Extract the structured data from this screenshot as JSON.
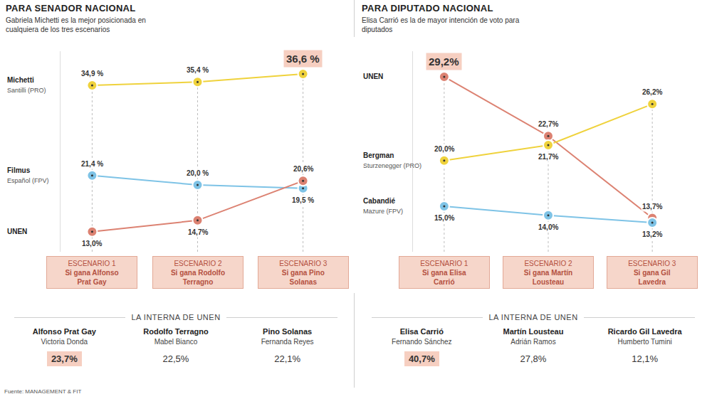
{
  "chart_data": [
    {
      "type": "line",
      "title": "PARA SENADOR NACIONAL",
      "subtitle": "Gabriela Michetti es la mejor posicionada en cualquiera de los tres escenarios",
      "categories": [
        "ESCENARIO 1",
        "ESCENARIO 2",
        "ESCENARIO 3"
      ],
      "scenario_labels": [
        "Si gana Alfonso Prat Gay",
        "Si gana Rodolfo Terragno",
        "Si gana Pino Solanas"
      ],
      "series": [
        {
          "name": "Michetti",
          "detail": "Santilli (PRO)",
          "color": "#efd23c",
          "values": [
            34.9,
            35.4,
            36.6
          ],
          "value_labels": [
            "34,9 %",
            "35,4 %",
            "36,6 %"
          ]
        },
        {
          "name": "Filmus",
          "detail": "Español (FPV)",
          "color": "#7ec3e6",
          "values": [
            21.4,
            20.0,
            19.5
          ],
          "value_labels": [
            "21,4 %",
            "20,0 %",
            "19,5 %"
          ]
        },
        {
          "name": "UNEN",
          "color": "#dc8272",
          "values": [
            13.0,
            14.7,
            20.6
          ],
          "value_labels": [
            "13,0%",
            "14,7%",
            "20,6%"
          ]
        }
      ],
      "ylim": [
        10,
        40
      ],
      "grid": false,
      "tick_labels": false,
      "data_labels": true,
      "marker": "circle",
      "internal": {
        "title": "LA INTERNA DE UNEN",
        "candidates": [
          {
            "name": "Alfonso Prat Gay",
            "running_mate": "Victoria Donda",
            "value": 23.7,
            "value_label": "23,7%"
          },
          {
            "name": "Rodolfo Terragno",
            "running_mate": "Mabel Bianco",
            "value": 22.5,
            "value_label": "22,5%"
          },
          {
            "name": "Pino Solanas",
            "running_mate": "Fernanda Reyes",
            "value": 22.1,
            "value_label": "22,1%"
          }
        ]
      }
    },
    {
      "type": "line",
      "title": "PARA DIPUTADO NACIONAL",
      "subtitle": "Elisa Carrió es la de mayor intención de voto para diputados",
      "categories": [
        "ESCENARIO 1",
        "ESCENARIO 2",
        "ESCENARIO 3"
      ],
      "scenario_labels": [
        "Si gana Elisa Carrió",
        "Si gana Martín Lousteau",
        "Si gana Gil Lavedra"
      ],
      "series": [
        {
          "name": "UNEN",
          "color": "#dc8272",
          "values": [
            29.2,
            22.7,
            13.7
          ],
          "value_labels": [
            "29,2%",
            "22,7%",
            "13,7%"
          ]
        },
        {
          "name": "Bergman",
          "detail": "Sturzenegger (PRO)",
          "color": "#efd23c",
          "values": [
            20.0,
            21.7,
            26.2
          ],
          "value_labels": [
            "20,0%",
            "21,7%",
            "26,2%"
          ]
        },
        {
          "name": "Cabandié",
          "detail": "Mazure (FPV)",
          "color": "#7ec3e6",
          "values": [
            15.0,
            14.0,
            13.2
          ],
          "value_labels": [
            "15,0%",
            "14,0%",
            "13,2%"
          ]
        }
      ],
      "ylim": [
        10,
        32
      ],
      "grid": false,
      "tick_labels": false,
      "data_labels": true,
      "marker": "circle",
      "internal": {
        "title": "LA INTERNA DE UNEN",
        "candidates": [
          {
            "name": "Elisa Carrió",
            "running_mate": "Fernando Sánchez",
            "value": 40.7,
            "value_label": "40,7%"
          },
          {
            "name": "Martín Lousteau",
            "running_mate": "Adrián Ramos",
            "value": 27.8,
            "value_label": "27,8%"
          },
          {
            "name": "Ricardo Gil Lavedra",
            "running_mate": "Humberto Tumini",
            "value": 12.1,
            "value_label": "12,1%"
          }
        ]
      }
    }
  ],
  "source": "Fuente: MANAGEMENT & FIT"
}
